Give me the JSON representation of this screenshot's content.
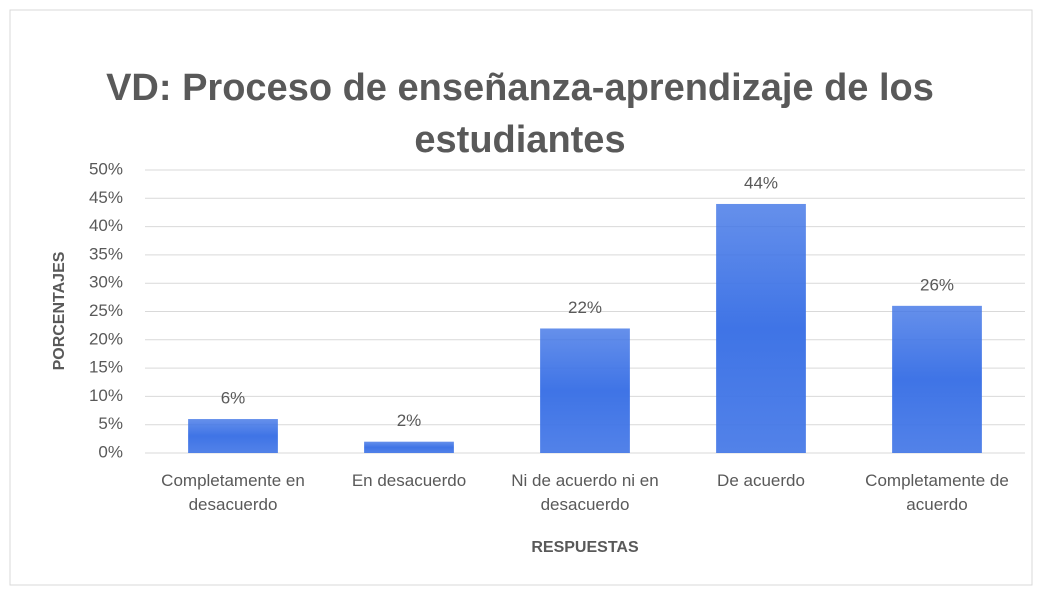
{
  "chart_data": {
    "type": "bar",
    "title": "VD: Proceso de enseñanza-aprendizaje de los estudiantes",
    "x_label": "RESPUESTAS",
    "y_label": "PORCENTAJES",
    "categories": [
      "Completamente en desacuerdo",
      "En desacuerdo",
      "Ni de acuerdo ni en desacuerdo",
      "De acuerdo",
      "Completamente de acuerdo"
    ],
    "values": [
      6,
      2,
      22,
      44,
      26
    ],
    "value_labels": [
      "6%",
      "2%",
      "22%",
      "44%",
      "26%"
    ],
    "color": "#3f74e6",
    "ylim": [
      0,
      50
    ],
    "yticks": [
      {
        "value": 0,
        "label": "0%"
      },
      {
        "value": 5,
        "label": "5%"
      },
      {
        "value": 10,
        "label": "10%"
      },
      {
        "value": 15,
        "label": "15%"
      },
      {
        "value": 20,
        "label": "20%"
      },
      {
        "value": 25,
        "label": "25%"
      },
      {
        "value": 30,
        "label": "30%"
      },
      {
        "value": 35,
        "label": "35%"
      },
      {
        "value": 40,
        "label": "40%"
      },
      {
        "value": 45,
        "label": "45%"
      },
      {
        "value": 50,
        "label": "50%"
      }
    ],
    "grid": true
  }
}
